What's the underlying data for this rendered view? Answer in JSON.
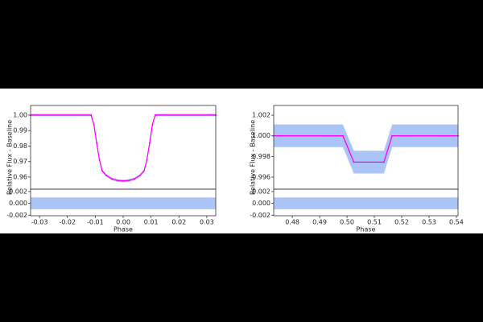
{
  "chart_data": [
    {
      "type": "line",
      "xlabel": "Phase",
      "ylabel": "Relative Flux - Baseline",
      "x": [
        -0.0332,
        -0.0115,
        -0.0105,
        -0.0095,
        -0.0085,
        -0.0075,
        -0.006,
        -0.004,
        -0.002,
        0,
        0.002,
        0.004,
        0.006,
        0.0075,
        0.0085,
        0.0095,
        0.0105,
        0.0115,
        0.0332
      ],
      "series": [
        {
          "color": "#ff00ff",
          "band_color": "#6495ed",
          "spread": 0.0008,
          "values": [
            1.0,
            1.0,
            0.994,
            0.982,
            0.971,
            0.964,
            0.961,
            0.9588,
            0.9578,
            0.9575,
            0.9578,
            0.9588,
            0.961,
            0.964,
            0.971,
            0.982,
            0.994,
            1.0,
            1.0
          ]
        }
      ],
      "xlim": [
        -0.0332,
        0.0332
      ],
      "xticks": [
        -0.03,
        -0.02,
        -0.01,
        {
          "value": 0,
          "label": "0.00"
        },
        0.01,
        0.02,
        0.03
      ],
      "ylim": [
        0.9522,
        1.0062
      ],
      "yticks": [
        {
          "value": 1,
          "label": "1.00"
        },
        0.99,
        0.98,
        0.97,
        0.96
      ],
      "residual": {
        "ylim": [
          -0.0021,
          0.0024
        ],
        "yticks": [
          0.002,
          {
            "value": 0,
            "label": "0.000"
          },
          -0.002
        ],
        "center": 0,
        "spread": 0.001
      }
    },
    {
      "type": "line",
      "xlabel": "Phase",
      "ylabel": "Relative Flux - Baseline",
      "x": [
        0.4732,
        0.4985,
        0.5025,
        0.5135,
        0.5165,
        0.5406
      ],
      "series": [
        {
          "color": "#ff00ff",
          "band_color": "#6495ed",
          "spread": 0.0011,
          "values": [
            1.0,
            1.0,
            0.99745,
            0.99745,
            1.0,
            1.0
          ]
        }
      ],
      "xlim": [
        0.4732,
        0.5406
      ],
      "xticks": [
        0.48,
        0.49,
        {
          "value": 0.5,
          "label": "0.50"
        },
        0.51,
        0.52,
        0.53,
        0.54
      ],
      "ylim": [
        0.99483,
        1.00294
      ],
      "yticks": [
        1.002,
        {
          "value": 1,
          "label": "1.000"
        },
        0.998,
        0.996
      ],
      "residual": {
        "ylim": [
          -0.0021,
          0.0024
        ],
        "yticks": [
          0.002,
          {
            "value": 0,
            "label": "0.000"
          },
          -0.002
        ],
        "center": 0,
        "spread": 0.001
      }
    }
  ]
}
